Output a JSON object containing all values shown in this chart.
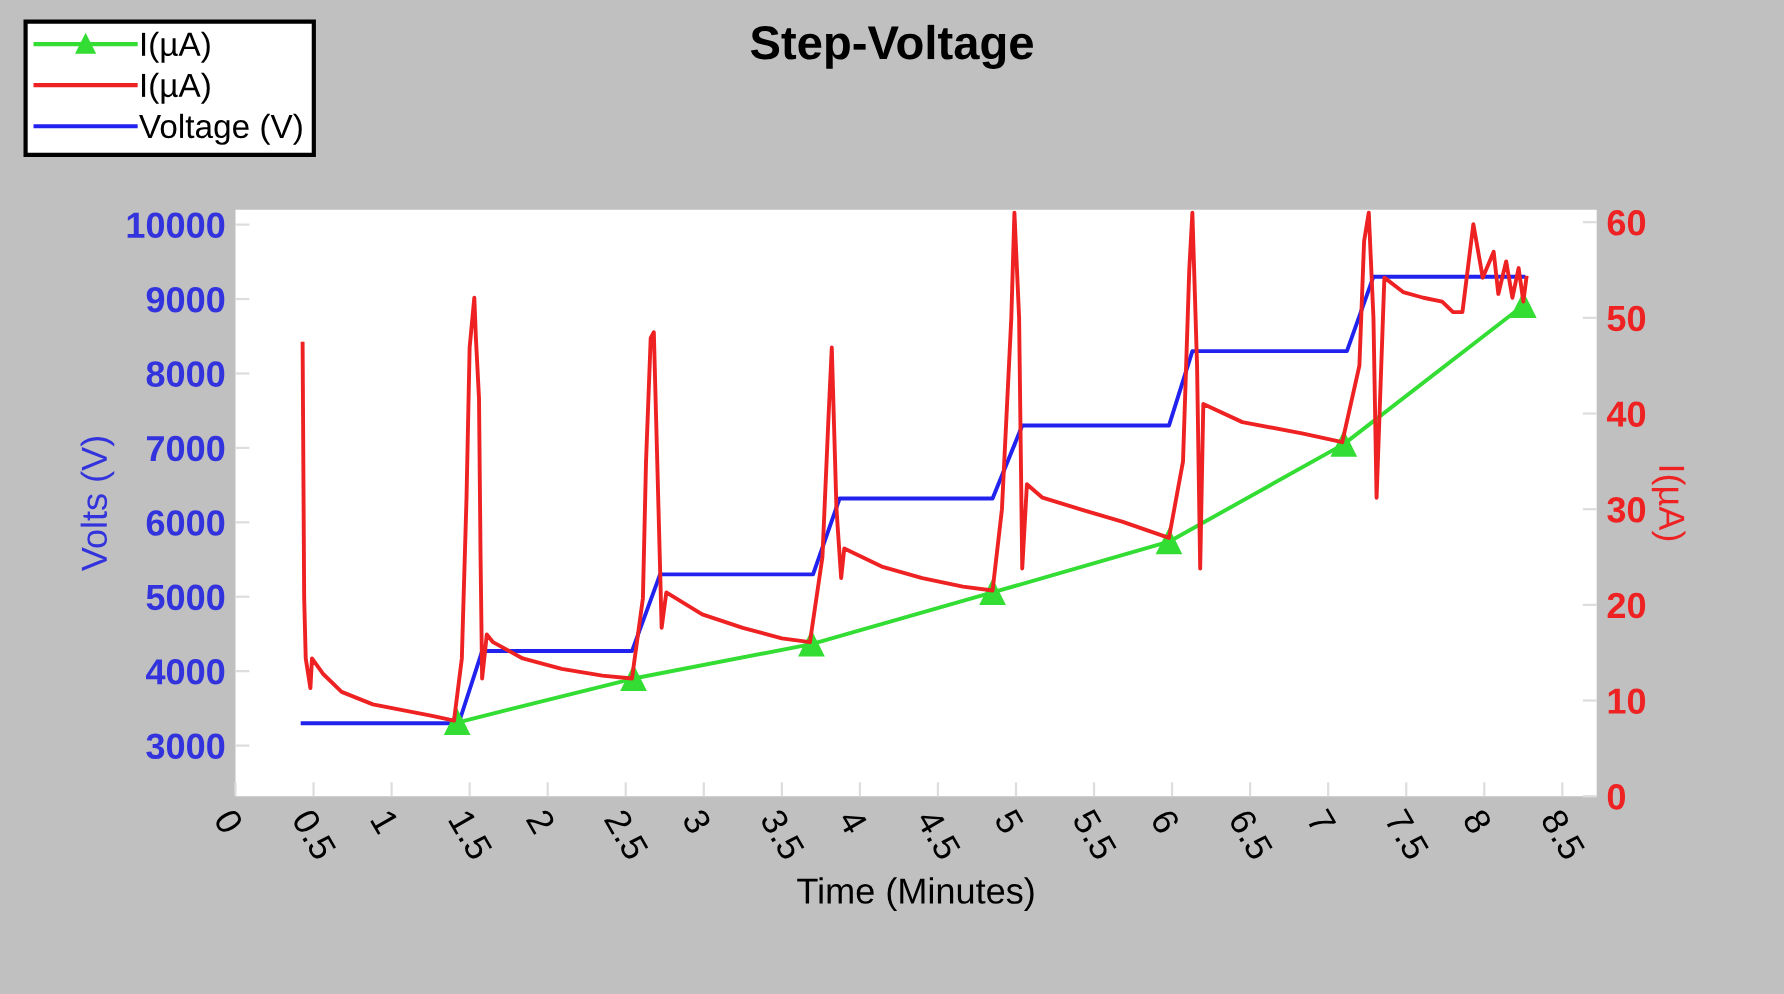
{
  "chart_data": {
    "type": "line",
    "title": "Step-Voltage",
    "xlabel": "Time (Minutes)",
    "ylabel": "Volts (V)",
    "y2label": "I(µA)",
    "xlim": [
      0,
      8.72
    ],
    "xticks": [
      0,
      0.5,
      1,
      1.5,
      2,
      2.5,
      3,
      3.5,
      4,
      4.5,
      5,
      5.5,
      6,
      6.5,
      7,
      7.5,
      8,
      8.5
    ],
    "ylim": [
      2320,
      10200
    ],
    "yticks": [
      3000,
      4000,
      5000,
      6000,
      7000,
      8000,
      9000,
      10000
    ],
    "y2lim": [
      0,
      61.3
    ],
    "y2ticks": [
      0,
      10,
      20,
      30,
      40,
      50,
      60
    ],
    "grid": false,
    "legend": "top left",
    "line_style": "solid",
    "series": [
      {
        "name": "I(µA)",
        "color": "#33dd33",
        "axis": "y2",
        "marker": "triangle",
        "x": [
          1.42,
          2.55,
          3.69,
          4.85,
          5.98,
          7.1,
          8.25
        ],
        "values": [
          7.7,
          12.3,
          15.9,
          21.3,
          26.6,
          36.8,
          51.3
        ]
      },
      {
        "name": "I(µA)",
        "color": "#ee2222",
        "axis": "y2",
        "marker": "none",
        "x": [
          0.43,
          0.44,
          0.45,
          0.48,
          0.49,
          0.56,
          0.68,
          0.88,
          1.07,
          1.26,
          1.4,
          1.45,
          1.48,
          1.5,
          1.53,
          1.54,
          1.56,
          1.57,
          1.58,
          1.61,
          1.65,
          1.84,
          2.09,
          2.35,
          2.54,
          2.61,
          2.63,
          2.66,
          2.68,
          2.71,
          2.73,
          2.76,
          2.99,
          3.25,
          3.5,
          3.68,
          3.76,
          3.8,
          3.82,
          3.85,
          3.88,
          3.9,
          4.14,
          4.4,
          4.66,
          4.85,
          4.91,
          4.97,
          4.99,
          5.02,
          5.04,
          5.07,
          5.17,
          5.43,
          5.68,
          5.98,
          6.07,
          6.11,
          6.13,
          6.16,
          6.18,
          6.2,
          6.45,
          6.84,
          7.09,
          7.2,
          7.23,
          7.26,
          7.29,
          7.31,
          7.34,
          7.36,
          7.48,
          7.61,
          7.73,
          7.8,
          7.86,
          7.93,
          7.99,
          8.06,
          8.09,
          8.14,
          8.18,
          8.22,
          8.25,
          8.27
        ],
        "values": [
          47.3,
          20.7,
          14.4,
          11.3,
          14.4,
          12.8,
          10.9,
          9.6,
          9.0,
          8.4,
          7.9,
          14.4,
          31.2,
          46.9,
          52.1,
          47.9,
          41.6,
          25.0,
          12.3,
          16.9,
          16.1,
          14.4,
          13.3,
          12.6,
          12.3,
          20.7,
          35,
          47.9,
          48.5,
          30,
          17.6,
          21.3,
          19.0,
          17.6,
          16.5,
          16.1,
          25.0,
          40,
          46.9,
          30,
          22.8,
          25.9,
          24.0,
          22.8,
          21.9,
          21.5,
          30,
          50,
          61.0,
          50,
          23.8,
          32.6,
          31.2,
          29.9,
          28.7,
          27.0,
          35,
          55,
          61.0,
          45,
          23.8,
          41.0,
          39.1,
          37.9,
          37.0,
          45,
          58,
          61.0,
          50,
          31.2,
          45,
          54.2,
          52.7,
          52.1,
          51.7,
          50.6,
          50.6,
          59.8,
          54.2,
          56.9,
          52.5,
          55.9,
          52.1,
          55.2,
          51.7,
          54.2
        ]
      },
      {
        "name": "Voltage (V)",
        "color": "#2222ee",
        "axis": "y",
        "marker": "none",
        "x": [
          0.43,
          1.43,
          1.58,
          2.54,
          2.72,
          3.7,
          3.87,
          4.85,
          5.04,
          5.98,
          6.13,
          7.12,
          7.29,
          8.25
        ],
        "values": [
          3300,
          3300,
          4270,
          4270,
          5300,
          5300,
          6320,
          6320,
          7300,
          7300,
          8300,
          8300,
          9300,
          9300
        ]
      }
    ]
  }
}
